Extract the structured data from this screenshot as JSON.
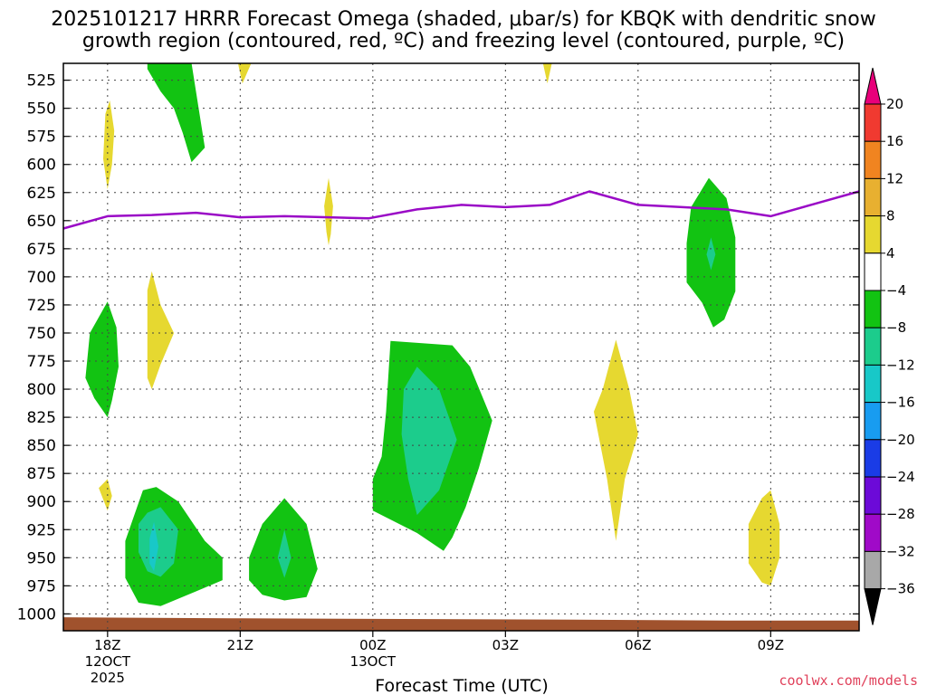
{
  "chart_data": {
    "type": "contour-timeheight",
    "title_lines": [
      "2025101217 HRRR Forecast Omega (shaded, μbar/s) for KBQK with dendritic snow",
      "growth region (contoured, red, ºC) and freezing level (contoured, purple, ºC)"
    ],
    "xlabel": "Forecast Time (UTC)",
    "credit": "coolwx.com/models",
    "credit_color": "#e0405a",
    "x_range_hours": [
      -1,
      17
    ],
    "x_ticks": [
      {
        "hour": 0,
        "label": "18Z",
        "sub": [
          "12OCT",
          "2025"
        ]
      },
      {
        "hour": 3,
        "label": "21Z",
        "sub": []
      },
      {
        "hour": 6,
        "label": "00Z",
        "sub": [
          "13OCT"
        ]
      },
      {
        "hour": 9,
        "label": "03Z",
        "sub": []
      },
      {
        "hour": 12,
        "label": "06Z",
        "sub": []
      },
      {
        "hour": 15,
        "label": "09Z",
        "sub": []
      }
    ],
    "y_range_hpa": [
      510,
      1015
    ],
    "y_ticks": [
      525,
      550,
      575,
      600,
      625,
      650,
      675,
      700,
      725,
      750,
      775,
      800,
      825,
      850,
      875,
      900,
      925,
      950,
      975,
      1000
    ],
    "grid": true,
    "colorbar": {
      "labels": [
        "20",
        "16",
        "12",
        "8",
        "4",
        "−4",
        "−8",
        "−12",
        "−16",
        "−20",
        "−24",
        "−28",
        "−32",
        "−36"
      ],
      "colors": [
        "#e8007a",
        "#f03a30",
        "#f08420",
        "#e8b030",
        "#e6d830",
        "#ffffff",
        "#12c312",
        "#1ccc8c",
        "#18c8c8",
        "#189cf0",
        "#1a3ce6",
        "#6c0ad8",
        "#a00ac8",
        "#a8a8a8",
        "#000000"
      ]
    },
    "freezing_level": {
      "color": "#9a0ac6",
      "hours": [
        -1.0,
        0.0,
        1.0,
        2.0,
        3.0,
        4.0,
        5.0,
        5.9,
        7.0,
        8.0,
        9.0,
        10.0,
        10.9,
        12.0,
        13.0,
        14.0,
        15.0,
        16.0,
        17.0
      ],
      "pressure": [
        657,
        646,
        645,
        643,
        647,
        646,
        647,
        648,
        640,
        636,
        638,
        636,
        624,
        636,
        638,
        640,
        646,
        635,
        624
      ]
    },
    "shaded_regions": [
      {
        "level": "-4",
        "color": "#12c312",
        "points": [
          [
            0.9,
            505
          ],
          [
            1.9,
            505
          ],
          [
            2.1,
            560
          ],
          [
            2.2,
            585
          ],
          [
            1.9,
            598
          ],
          [
            1.7,
            572
          ],
          [
            1.5,
            550
          ],
          [
            1.2,
            535
          ],
          [
            0.9,
            515
          ]
        ]
      },
      {
        "level": "4",
        "color": "#e6d830",
        "points": [
          [
            2.95,
            505
          ],
          [
            3.25,
            505
          ],
          [
            3.05,
            528
          ]
        ]
      },
      {
        "level": "4",
        "color": "#e6d830",
        "points": [
          [
            9.85,
            505
          ],
          [
            10.05,
            505
          ],
          [
            9.95,
            528
          ]
        ]
      },
      {
        "level": "4",
        "color": "#e6d830",
        "points": [
          [
            -0.05,
            555
          ],
          [
            0.05,
            543
          ],
          [
            0.15,
            570
          ],
          [
            0.1,
            600
          ],
          [
            0.0,
            622
          ],
          [
            -0.1,
            595
          ]
        ]
      },
      {
        "level": "4",
        "color": "#e6d830",
        "points": [
          [
            4.9,
            637
          ],
          [
            5.0,
            612
          ],
          [
            5.1,
            637
          ],
          [
            5.05,
            662
          ],
          [
            5.0,
            672
          ],
          [
            4.95,
            660
          ]
        ]
      },
      {
        "level": "-4",
        "color": "#12c312",
        "points": [
          [
            13.2,
            638
          ],
          [
            13.6,
            612
          ],
          [
            14.0,
            630
          ],
          [
            14.2,
            665
          ],
          [
            14.2,
            713
          ],
          [
            13.95,
            738
          ],
          [
            13.7,
            745
          ],
          [
            13.45,
            723
          ],
          [
            13.1,
            705
          ],
          [
            13.1,
            670
          ]
        ]
      },
      {
        "level": "-8",
        "color": "#1ccc8c",
        "points": [
          [
            13.55,
            680
          ],
          [
            13.65,
            665
          ],
          [
            13.75,
            680
          ],
          [
            13.65,
            694
          ]
        ]
      },
      {
        "level": "4",
        "color": "#e6d830",
        "points": [
          [
            0.9,
            712
          ],
          [
            1.0,
            695
          ],
          [
            1.2,
            725
          ],
          [
            1.5,
            750
          ],
          [
            1.2,
            778
          ],
          [
            1.0,
            800
          ],
          [
            0.9,
            790
          ],
          [
            0.9,
            760
          ]
        ]
      },
      {
        "level": "-4",
        "color": "#12c312",
        "points": [
          [
            -0.5,
            790
          ],
          [
            -0.4,
            750
          ],
          [
            0.0,
            722
          ],
          [
            0.2,
            745
          ],
          [
            0.25,
            780
          ],
          [
            0.1,
            810
          ],
          [
            0.0,
            825
          ],
          [
            -0.3,
            808
          ]
        ]
      },
      {
        "level": "-4",
        "color": "#12c312",
        "points": [
          [
            6.4,
            757
          ],
          [
            7.8,
            761
          ],
          [
            8.2,
            780
          ],
          [
            8.7,
            828
          ],
          [
            8.4,
            870
          ],
          [
            8.1,
            905
          ],
          [
            7.8,
            932
          ],
          [
            7.6,
            944
          ],
          [
            7.0,
            928
          ],
          [
            6.0,
            908
          ],
          [
            6.0,
            880
          ],
          [
            6.2,
            860
          ],
          [
            6.3,
            820
          ]
        ]
      },
      {
        "level": "-8",
        "color": "#1ccc8c",
        "points": [
          [
            6.7,
            800
          ],
          [
            7.0,
            780
          ],
          [
            7.5,
            800
          ],
          [
            7.9,
            845
          ],
          [
            7.5,
            890
          ],
          [
            7.0,
            912
          ],
          [
            6.8,
            880
          ],
          [
            6.65,
            840
          ]
        ]
      },
      {
        "level": "4",
        "color": "#e6d830",
        "points": [
          [
            11.2,
            800
          ],
          [
            11.5,
            756
          ],
          [
            11.8,
            800
          ],
          [
            12.0,
            840
          ],
          [
            11.7,
            880
          ],
          [
            11.5,
            935
          ],
          [
            11.3,
            880
          ],
          [
            11.0,
            820
          ]
        ]
      },
      {
        "level": "4",
        "color": "#e6d830",
        "points": [
          [
            -0.2,
            888
          ],
          [
            0.0,
            880
          ],
          [
            0.1,
            895
          ],
          [
            0.0,
            908
          ]
        ]
      },
      {
        "level": "-4",
        "color": "#12c312",
        "points": [
          [
            0.4,
            935
          ],
          [
            0.8,
            890
          ],
          [
            1.1,
            887
          ],
          [
            1.6,
            900
          ],
          [
            2.2,
            935
          ],
          [
            2.6,
            950
          ],
          [
            2.6,
            970
          ],
          [
            2.0,
            980
          ],
          [
            1.2,
            993
          ],
          [
            0.7,
            990
          ],
          [
            0.4,
            968
          ]
        ]
      },
      {
        "level": "-8",
        "color": "#1ccc8c",
        "points": [
          [
            0.7,
            920
          ],
          [
            0.9,
            910
          ],
          [
            1.2,
            905
          ],
          [
            1.6,
            925
          ],
          [
            1.5,
            955
          ],
          [
            1.2,
            967
          ],
          [
            0.9,
            962
          ],
          [
            0.7,
            945
          ]
        ]
      },
      {
        "level": "-12",
        "color": "#18c8c8",
        "points": [
          [
            0.95,
            933
          ],
          [
            1.05,
            918
          ],
          [
            1.15,
            940
          ],
          [
            1.05,
            962
          ],
          [
            0.95,
            955
          ]
        ]
      },
      {
        "level": "-4",
        "color": "#12c312",
        "points": [
          [
            3.2,
            950
          ],
          [
            3.5,
            920
          ],
          [
            4.0,
            897
          ],
          [
            4.5,
            920
          ],
          [
            4.75,
            960
          ],
          [
            4.5,
            985
          ],
          [
            4.0,
            988
          ],
          [
            3.5,
            983
          ],
          [
            3.2,
            970
          ]
        ]
      },
      {
        "level": "-8",
        "color": "#1ccc8c",
        "points": [
          [
            3.85,
            950
          ],
          [
            4.0,
            925
          ],
          [
            4.15,
            950
          ],
          [
            4.0,
            968
          ]
        ]
      },
      {
        "level": "4",
        "color": "#e6d830",
        "points": [
          [
            14.5,
            920
          ],
          [
            14.8,
            897
          ],
          [
            15.0,
            890
          ],
          [
            15.2,
            920
          ],
          [
            15.2,
            950
          ],
          [
            15.0,
            975
          ],
          [
            14.8,
            972
          ],
          [
            14.5,
            955
          ]
        ]
      }
    ],
    "terrain": {
      "color": "#a0522d",
      "hours": [
        -1,
        3,
        10,
        14,
        17
      ],
      "pressure": [
        1003,
        1004,
        1005,
        1006,
        1006
      ]
    }
  }
}
